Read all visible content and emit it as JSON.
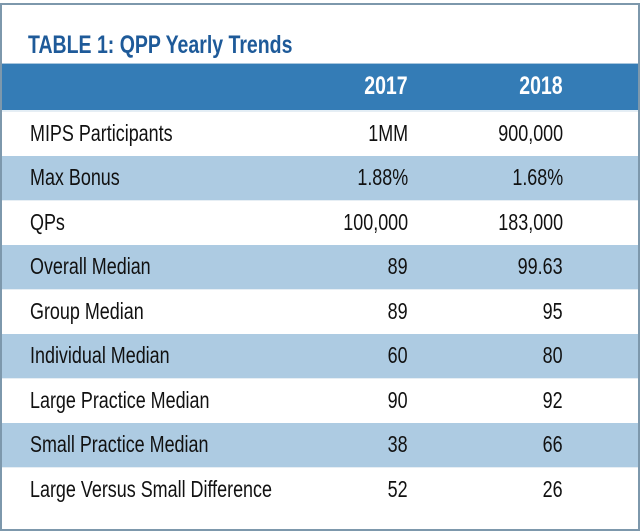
{
  "title": "TABLE 1: QPP Yearly Trends",
  "columns": [
    "",
    "2017",
    "2018"
  ],
  "rows": [
    {
      "label": "MIPS Participants",
      "y2017": "1MM",
      "y2018": "900,000"
    },
    {
      "label": "Max Bonus",
      "y2017": "1.88%",
      "y2018": "1.68%"
    },
    {
      "label": "QPs",
      "y2017": "100,000",
      "y2018": "183,000"
    },
    {
      "label": "Overall Median",
      "y2017": "89",
      "y2018": "99.63"
    },
    {
      "label": "Group Median",
      "y2017": "89",
      "y2018": "95"
    },
    {
      "label": "Individual Median",
      "y2017": "60",
      "y2018": "80"
    },
    {
      "label": "Large Practice Median",
      "y2017": "90",
      "y2018": "92"
    },
    {
      "label": "Small Practice Median",
      "y2017": "38",
      "y2018": "66"
    },
    {
      "label": "Large Versus Small Difference",
      "y2017": "52",
      "y2018": "26"
    }
  ],
  "colors": {
    "title": "#1e5a99",
    "header_band": "#347cb6",
    "alt_row_band": "#adcbe2",
    "border": "#7d98ac"
  }
}
